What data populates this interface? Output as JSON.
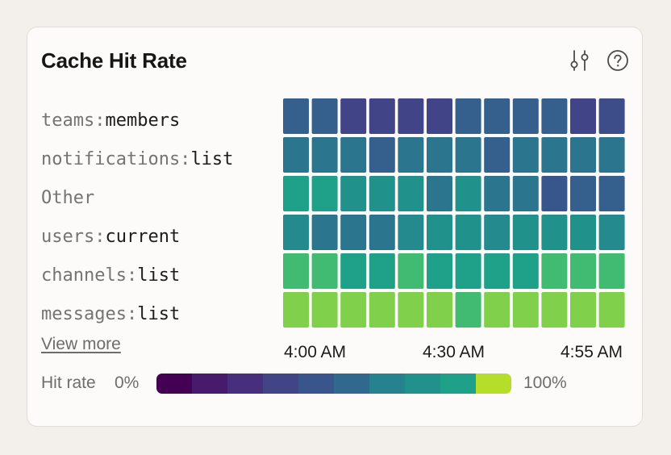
{
  "card": {
    "title": "Cache Hit Rate",
    "filter_icon": "sliders-icon",
    "help_icon": "help-circle-icon",
    "view_more": "View more"
  },
  "rows": [
    {
      "prefix": "teams:",
      "key": "members"
    },
    {
      "prefix": "notifications:",
      "key": "list"
    },
    {
      "prefix": "",
      "key": "Other"
    },
    {
      "prefix": "users:",
      "key": "current"
    },
    {
      "prefix": "channels:",
      "key": "list"
    },
    {
      "prefix": "messages:",
      "key": "list"
    }
  ],
  "time_labels": [
    "4:00 AM",
    "4:30 AM",
    "4:55 AM"
  ],
  "legend": {
    "title": "Hit rate",
    "min_label": "0%",
    "max_label": "100%",
    "colors": [
      "#440154",
      "#481a6c",
      "#472f7d",
      "#414487",
      "#39568c",
      "#31688e",
      "#26828e",
      "#21918c",
      "#1fa088",
      "#4ac16d",
      "#b5de2b"
    ]
  },
  "chart_data": {
    "type": "heatmap",
    "title": "Cache Hit Rate",
    "y_categories": [
      "teams:members",
      "notifications:list",
      "Other",
      "users:current",
      "channels:list",
      "messages:list"
    ],
    "x_tick_labels": [
      "4:00 AM",
      "4:30 AM",
      "4:55 AM"
    ],
    "x_count": 12,
    "value_range": [
      0,
      100
    ],
    "value_unit": "%",
    "values": [
      [
        45,
        45,
        30,
        30,
        30,
        30,
        45,
        45,
        45,
        45,
        30,
        35
      ],
      [
        55,
        55,
        55,
        45,
        55,
        55,
        55,
        45,
        55,
        55,
        55,
        55
      ],
      [
        80,
        80,
        70,
        70,
        70,
        55,
        70,
        55,
        55,
        40,
        45,
        45
      ],
      [
        65,
        55,
        55,
        55,
        65,
        70,
        70,
        65,
        70,
        70,
        70,
        65
      ],
      [
        88,
        88,
        80,
        80,
        88,
        80,
        80,
        80,
        80,
        88,
        88,
        88
      ],
      [
        95,
        95,
        95,
        95,
        95,
        95,
        88,
        95,
        95,
        95,
        95,
        95
      ]
    ]
  }
}
